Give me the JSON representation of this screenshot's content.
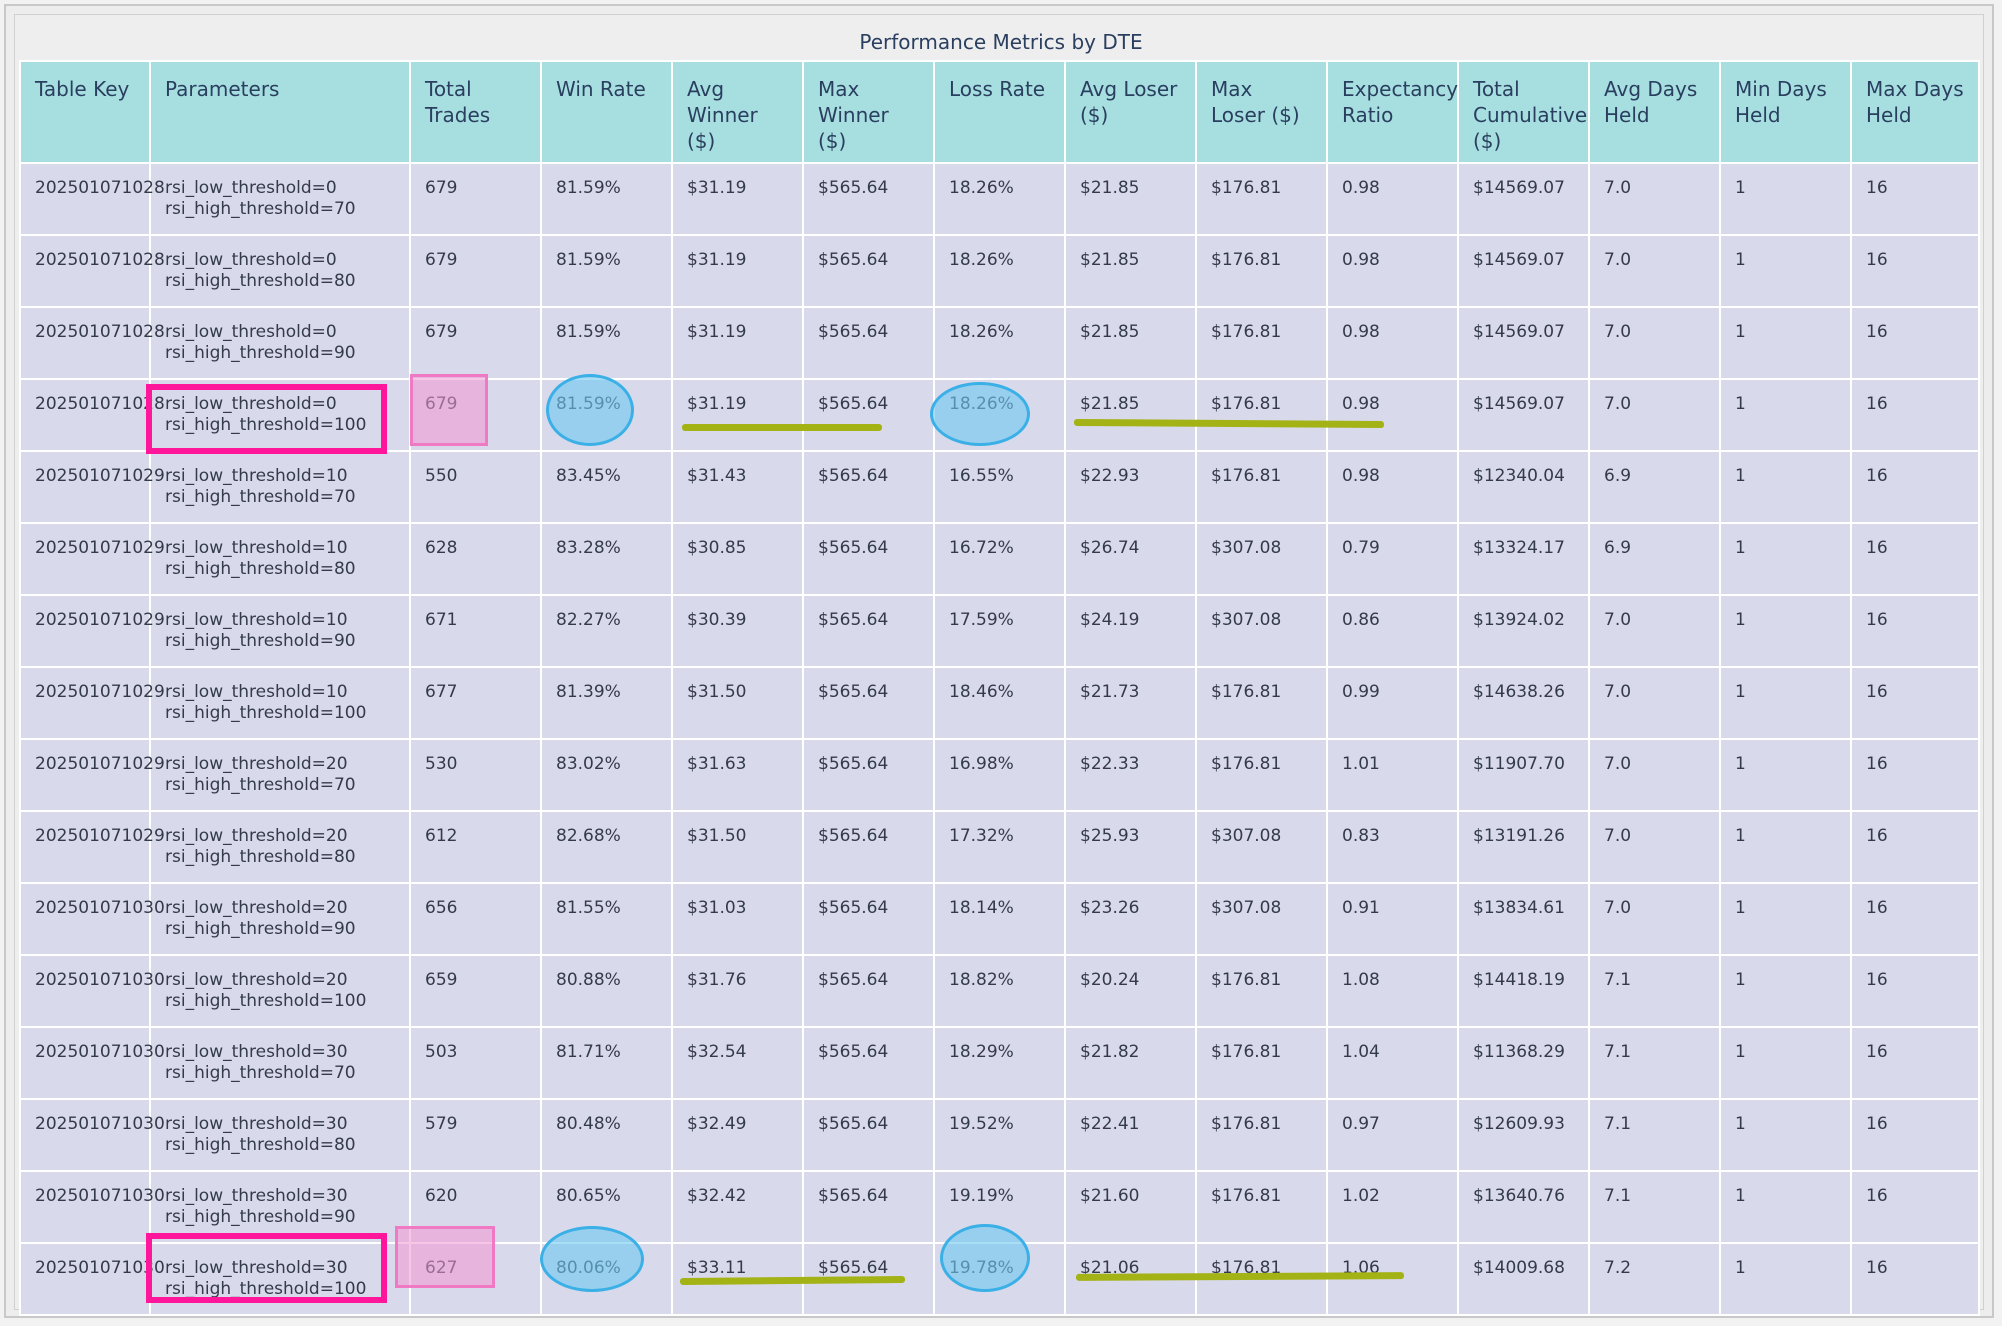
{
  "table": {
    "title": "Performance Metrics by DTE",
    "columns": [
      "Table Key",
      "Parameters",
      "Total Trades",
      "Win Rate",
      "Avg Winner ($)",
      "Max Winner ($)",
      "Loss Rate",
      "Avg Loser ($)",
      "Max Loser ($)",
      "Expectancy Ratio",
      "Total Cumulative ($)",
      "Avg Days Held",
      "Min Days Held",
      "Max Days Held"
    ],
    "rows": [
      {
        "key": "202501071028",
        "p1": "rsi_low_threshold=0",
        "p2": "rsi_high_threshold=70",
        "trades": "679",
        "win": "81.59%",
        "avgw": "$31.19",
        "maxw": "$565.64",
        "loss": "18.26%",
        "avgl": "$21.85",
        "maxl": "$176.81",
        "exp": "0.98",
        "cum": "$14569.07",
        "avgd": "7.0",
        "mind": "1",
        "maxd": "16"
      },
      {
        "key": "202501071028",
        "p1": "rsi_low_threshold=0",
        "p2": "rsi_high_threshold=80",
        "trades": "679",
        "win": "81.59%",
        "avgw": "$31.19",
        "maxw": "$565.64",
        "loss": "18.26%",
        "avgl": "$21.85",
        "maxl": "$176.81",
        "exp": "0.98",
        "cum": "$14569.07",
        "avgd": "7.0",
        "mind": "1",
        "maxd": "16"
      },
      {
        "key": "202501071028",
        "p1": "rsi_low_threshold=0",
        "p2": "rsi_high_threshold=90",
        "trades": "679",
        "win": "81.59%",
        "avgw": "$31.19",
        "maxw": "$565.64",
        "loss": "18.26%",
        "avgl": "$21.85",
        "maxl": "$176.81",
        "exp": "0.98",
        "cum": "$14569.07",
        "avgd": "7.0",
        "mind": "1",
        "maxd": "16"
      },
      {
        "key": "202501071028",
        "p1": "rsi_low_threshold=0",
        "p2": "rsi_high_threshold=100",
        "trades": "679",
        "win": "81.59%",
        "avgw": "$31.19",
        "maxw": "$565.64",
        "loss": "18.26%",
        "avgl": "$21.85",
        "maxl": "$176.81",
        "exp": "0.98",
        "cum": "$14569.07",
        "avgd": "7.0",
        "mind": "1",
        "maxd": "16"
      },
      {
        "key": "202501071029",
        "p1": "rsi_low_threshold=10",
        "p2": "rsi_high_threshold=70",
        "trades": "550",
        "win": "83.45%",
        "avgw": "$31.43",
        "maxw": "$565.64",
        "loss": "16.55%",
        "avgl": "$22.93",
        "maxl": "$176.81",
        "exp": "0.98",
        "cum": "$12340.04",
        "avgd": "6.9",
        "mind": "1",
        "maxd": "16"
      },
      {
        "key": "202501071029",
        "p1": "rsi_low_threshold=10",
        "p2": "rsi_high_threshold=80",
        "trades": "628",
        "win": "83.28%",
        "avgw": "$30.85",
        "maxw": "$565.64",
        "loss": "16.72%",
        "avgl": "$26.74",
        "maxl": "$307.08",
        "exp": "0.79",
        "cum": "$13324.17",
        "avgd": "6.9",
        "mind": "1",
        "maxd": "16"
      },
      {
        "key": "202501071029",
        "p1": "rsi_low_threshold=10",
        "p2": "rsi_high_threshold=90",
        "trades": "671",
        "win": "82.27%",
        "avgw": "$30.39",
        "maxw": "$565.64",
        "loss": "17.59%",
        "avgl": "$24.19",
        "maxl": "$307.08",
        "exp": "0.86",
        "cum": "$13924.02",
        "avgd": "7.0",
        "mind": "1",
        "maxd": "16"
      },
      {
        "key": "202501071029",
        "p1": "rsi_low_threshold=10",
        "p2": "rsi_high_threshold=100",
        "trades": "677",
        "win": "81.39%",
        "avgw": "$31.50",
        "maxw": "$565.64",
        "loss": "18.46%",
        "avgl": "$21.73",
        "maxl": "$176.81",
        "exp": "0.99",
        "cum": "$14638.26",
        "avgd": "7.0",
        "mind": "1",
        "maxd": "16"
      },
      {
        "key": "202501071029",
        "p1": "rsi_low_threshold=20",
        "p2": "rsi_high_threshold=70",
        "trades": "530",
        "win": "83.02%",
        "avgw": "$31.63",
        "maxw": "$565.64",
        "loss": "16.98%",
        "avgl": "$22.33",
        "maxl": "$176.81",
        "exp": "1.01",
        "cum": "$11907.70",
        "avgd": "7.0",
        "mind": "1",
        "maxd": "16"
      },
      {
        "key": "202501071029",
        "p1": "rsi_low_threshold=20",
        "p2": "rsi_high_threshold=80",
        "trades": "612",
        "win": "82.68%",
        "avgw": "$31.50",
        "maxw": "$565.64",
        "loss": "17.32%",
        "avgl": "$25.93",
        "maxl": "$307.08",
        "exp": "0.83",
        "cum": "$13191.26",
        "avgd": "7.0",
        "mind": "1",
        "maxd": "16"
      },
      {
        "key": "202501071030",
        "p1": "rsi_low_threshold=20",
        "p2": "rsi_high_threshold=90",
        "trades": "656",
        "win": "81.55%",
        "avgw": "$31.03",
        "maxw": "$565.64",
        "loss": "18.14%",
        "avgl": "$23.26",
        "maxl": "$307.08",
        "exp": "0.91",
        "cum": "$13834.61",
        "avgd": "7.0",
        "mind": "1",
        "maxd": "16"
      },
      {
        "key": "202501071030",
        "p1": "rsi_low_threshold=20",
        "p2": "rsi_high_threshold=100",
        "trades": "659",
        "win": "80.88%",
        "avgw": "$31.76",
        "maxw": "$565.64",
        "loss": "18.82%",
        "avgl": "$20.24",
        "maxl": "$176.81",
        "exp": "1.08",
        "cum": "$14418.19",
        "avgd": "7.1",
        "mind": "1",
        "maxd": "16"
      },
      {
        "key": "202501071030",
        "p1": "rsi_low_threshold=30",
        "p2": "rsi_high_threshold=70",
        "trades": "503",
        "win": "81.71%",
        "avgw": "$32.54",
        "maxw": "$565.64",
        "loss": "18.29%",
        "avgl": "$21.82",
        "maxl": "$176.81",
        "exp": "1.04",
        "cum": "$11368.29",
        "avgd": "7.1",
        "mind": "1",
        "maxd": "16"
      },
      {
        "key": "202501071030",
        "p1": "rsi_low_threshold=30",
        "p2": "rsi_high_threshold=80",
        "trades": "579",
        "win": "80.48%",
        "avgw": "$32.49",
        "maxw": "$565.64",
        "loss": "19.52%",
        "avgl": "$22.41",
        "maxl": "$176.81",
        "exp": "0.97",
        "cum": "$12609.93",
        "avgd": "7.1",
        "mind": "1",
        "maxd": "16"
      },
      {
        "key": "202501071030",
        "p1": "rsi_low_threshold=30",
        "p2": "rsi_high_threshold=90",
        "trades": "620",
        "win": "80.65%",
        "avgw": "$32.42",
        "maxw": "$565.64",
        "loss": "19.19%",
        "avgl": "$21.60",
        "maxl": "$176.81",
        "exp": "1.02",
        "cum": "$13640.76",
        "avgd": "7.1",
        "mind": "1",
        "maxd": "16"
      },
      {
        "key": "202501071030",
        "p1": "rsi_low_threshold=30",
        "p2": "rsi_high_threshold=100",
        "trades": "627",
        "win": "80.06%",
        "avgw": "$33.11",
        "maxw": "$565.64",
        "loss": "19.78%",
        "avgl": "$21.06",
        "maxl": "$176.81",
        "exp": "1.06",
        "cum": "$14009.68",
        "avgd": "7.2",
        "mind": "1",
        "maxd": "16"
      }
    ]
  },
  "annotations": {
    "highlight_color": "#ff169a",
    "circle_color": "#3ab0e6",
    "underline_color": "#a3b316"
  }
}
